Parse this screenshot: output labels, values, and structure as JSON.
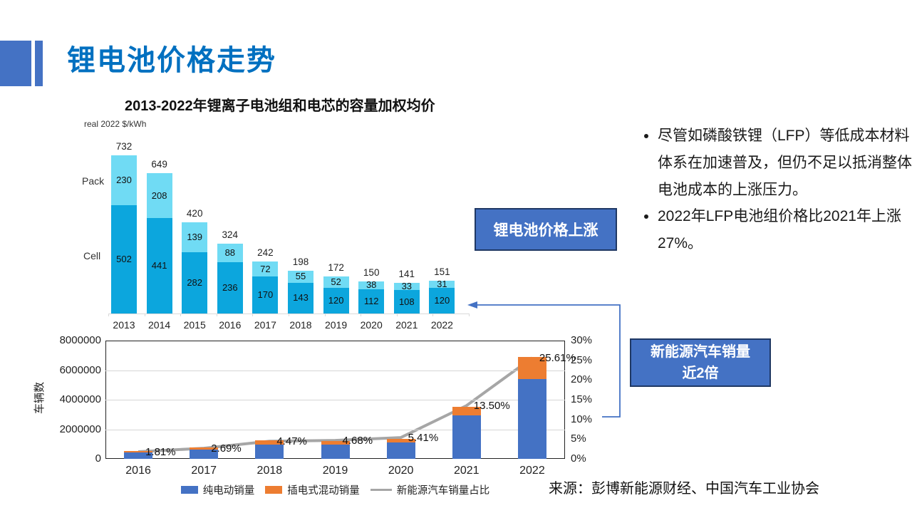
{
  "slide": {
    "title": "锂电池价格走势",
    "source": "来源：彭博新能源财经、中国汽车工业协会"
  },
  "callouts": {
    "price_up": "锂电池价格上涨",
    "nev_line1": "新能源汽车销量",
    "nev_line2": "近2倍"
  },
  "bullets": [
    "尽管如磷酸铁锂（LFP）等低成本材料体系在加速普及，但仍不足以抵消整体电池成本的上涨压力。",
    "2022年LFP电池组价格比2021年上涨27%。"
  ],
  "colors": {
    "accent_blue": "#4472C4",
    "title_blue": "#0070C0",
    "callout_border": "#1F3864",
    "pack_cyan": "#70DBF4",
    "cell_cyan": "#0CA6DD",
    "bev_blue": "#4472C4",
    "phev_orange": "#ED7D31",
    "share_gray": "#A6A6A6"
  },
  "chart_data": [
    {
      "type": "bar",
      "stacked": true,
      "title": "2013-2022年锂离子电池组和电芯的容量加权均价",
      "unit_label": "real 2022 $/kWh",
      "categories": [
        "2013",
        "2014",
        "2015",
        "2016",
        "2017",
        "2018",
        "2019",
        "2020",
        "2021",
        "2022"
      ],
      "series": [
        {
          "name": "Cell",
          "color": "#0CA6DD",
          "values": [
            502,
            441,
            282,
            236,
            170,
            143,
            120,
            112,
            108,
            120
          ]
        },
        {
          "name": "Pack",
          "color": "#70DBF4",
          "values": [
            230,
            208,
            139,
            88,
            72,
            55,
            52,
            38,
            33,
            31
          ]
        }
      ],
      "totals": [
        732,
        649,
        420,
        324,
        242,
        198,
        172,
        150,
        141,
        151
      ],
      "ylim": [
        0,
        760
      ],
      "grid": false,
      "legend_position": "row-labels-left"
    },
    {
      "type": "bar+line",
      "stacked": true,
      "title": "",
      "ylabel": "车辆数",
      "categories": [
        "2016",
        "2017",
        "2018",
        "2019",
        "2020",
        "2021",
        "2022"
      ],
      "series": [
        {
          "name": "纯电动销量",
          "type": "bar",
          "color": "#4472C4",
          "values": [
            410000,
            650000,
            980000,
            970000,
            1110000,
            2930000,
            5400000
          ]
        },
        {
          "name": "插电式混动销量",
          "type": "bar",
          "color": "#ED7D31",
          "values": [
            100000,
            120000,
            270000,
            230000,
            250000,
            600000,
            1500000
          ]
        },
        {
          "name": "新能源汽车销量占比",
          "type": "line",
          "axis": "right",
          "color": "#A6A6A6",
          "values": [
            1.81,
            2.69,
            4.47,
            4.68,
            5.41,
            13.5,
            25.61
          ],
          "labels": [
            "1.81%",
            "2.69%",
            "4.47%",
            "4.68%",
            "5.41%",
            "13.50%",
            "25.61%"
          ]
        }
      ],
      "y_left": {
        "min": 0,
        "max": 8000000,
        "ticks": [
          0,
          2000000,
          4000000,
          6000000,
          8000000
        ],
        "grid_values": [
          2000000,
          4000000,
          6000000
        ]
      },
      "y_right": {
        "min": 0,
        "max": 30,
        "ticks": [
          0,
          5,
          10,
          15,
          20,
          25,
          30
        ],
        "suffix": "%"
      },
      "grid": true,
      "legend_position": "bottom-center"
    }
  ]
}
